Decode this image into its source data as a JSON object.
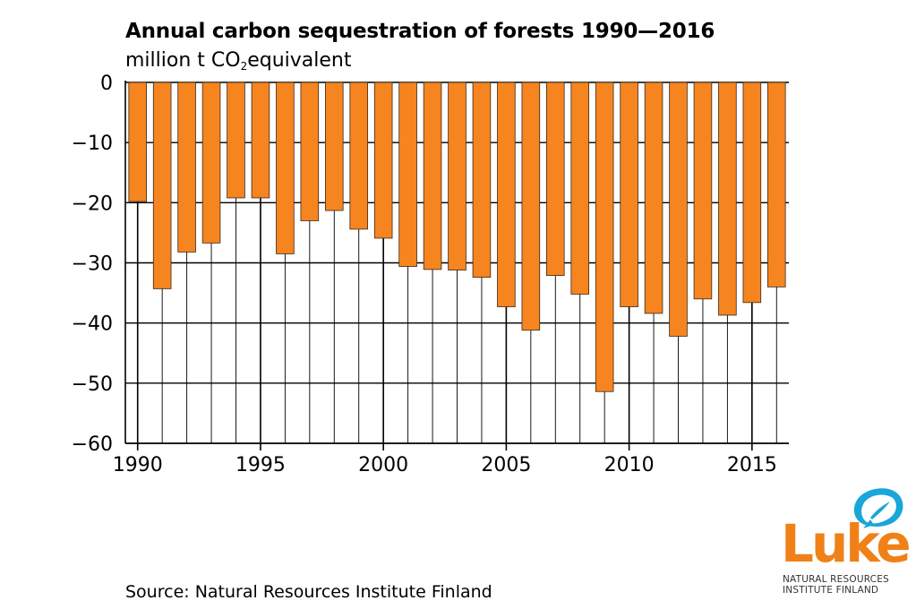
{
  "title": "Annual carbon sequestration of forests 1990—2016",
  "subtitle": {
    "prefix": "million t CO",
    "subscript": "2",
    "suffix": "equivalent"
  },
  "source": "Source: Natural Resources Institute Finland",
  "logo": {
    "word": "Luke",
    "line1": "NATURAL RESOURCES",
    "line2": "INSTITUTE FINLAND",
    "color": "#f08119",
    "leaf_color": "#19a6d9"
  },
  "chart_data": {
    "type": "bar",
    "title": "Annual carbon sequestration of forests 1990—2016",
    "ylabel": "million t CO2equivalent",
    "xlabel": "",
    "categories": [
      1990,
      1991,
      1992,
      1993,
      1994,
      1995,
      1996,
      1997,
      1998,
      1999,
      2000,
      2001,
      2002,
      2003,
      2004,
      2005,
      2006,
      2007,
      2008,
      2009,
      2010,
      2011,
      2012,
      2013,
      2014,
      2015,
      2016
    ],
    "values": [
      -19.8,
      -34.3,
      -28.2,
      -26.7,
      -19.2,
      -19.2,
      -28.5,
      -23.0,
      -21.3,
      -24.4,
      -25.9,
      -30.6,
      -31.1,
      -31.2,
      -32.4,
      -37.3,
      -41.2,
      -32.1,
      -35.2,
      -51.4,
      -37.3,
      -38.4,
      -42.2,
      -36.0,
      -38.7,
      -36.6,
      -34.0
    ],
    "ylim": [
      -60,
      0
    ],
    "yticks": [
      0,
      -10,
      -20,
      -30,
      -40,
      -50,
      -60
    ],
    "xticks": [
      1990,
      1995,
      2000,
      2005,
      2010,
      2015
    ],
    "bar_color": "#f6841f",
    "grid": true,
    "legend": "none"
  }
}
